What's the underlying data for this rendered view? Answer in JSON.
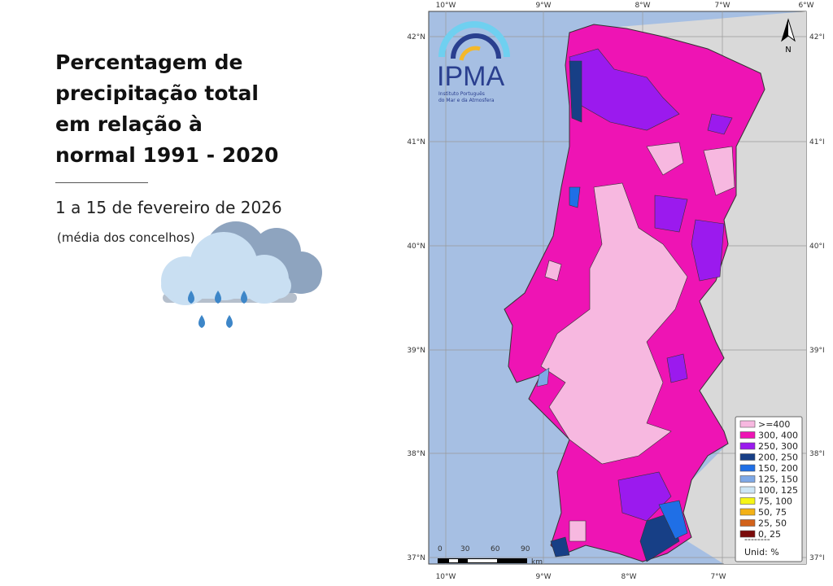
{
  "title_lines": [
    "Percentagem de",
    "precipitação total",
    "em relação à",
    "normal 1991 - 2020"
  ],
  "subtitle": "1 a 15 de fevereiro de 2026",
  "note": "(média dos concelhos)",
  "icons": {
    "weather": "rain-cloud-icon",
    "north": "north-arrow-icon"
  },
  "logo": {
    "name": "IPMA",
    "tagline_1": "Instituto Português",
    "tagline_2": "do Mar e da Atmosfera"
  },
  "north_label": "N",
  "axis": {
    "lon_top": [
      "10°W",
      "9°W",
      "8°W",
      "7°W",
      "6°W"
    ],
    "lon_bottom": [
      "10°W",
      "9°W",
      "8°W",
      "7°W"
    ],
    "lat_left": [
      "42°N",
      "41°N",
      "40°N",
      "39°N",
      "38°N",
      "37°N"
    ],
    "lat_right": [
      "42°I",
      "41°I",
      "40°I",
      "39°I",
      "38°I",
      "37°I"
    ]
  },
  "scale": {
    "labels": [
      "0",
      "30",
      "60",
      "90"
    ],
    "unit": "km"
  },
  "legend": {
    "items": [
      {
        "label": ">=400",
        "color": "#f7b8e0"
      },
      {
        "label": "300, 400",
        "color": "#ee14b4"
      },
      {
        "label": "250, 300",
        "color": "#9b1aee"
      },
      {
        "label": "200, 250",
        "color": "#173f86"
      },
      {
        "label": "150, 200",
        "color": "#1f6fe6"
      },
      {
        "label": "125, 150",
        "color": "#7ea8e6"
      },
      {
        "label": "100, 125",
        "color": "#cde6f5"
      },
      {
        "label": "75, 100",
        "color": "#f5f516"
      },
      {
        "label": "50, 75",
        "color": "#f3b116"
      },
      {
        "label": "25, 50",
        "color": "#d2621a"
      },
      {
        "label": "0, 25",
        "color": "#7a0a0a"
      }
    ],
    "separator": "--------",
    "unit": "Unid: %"
  },
  "colors": {
    "ocean": "#a6bfe3",
    "spain": "#d9d9d9",
    "border": "#333"
  }
}
